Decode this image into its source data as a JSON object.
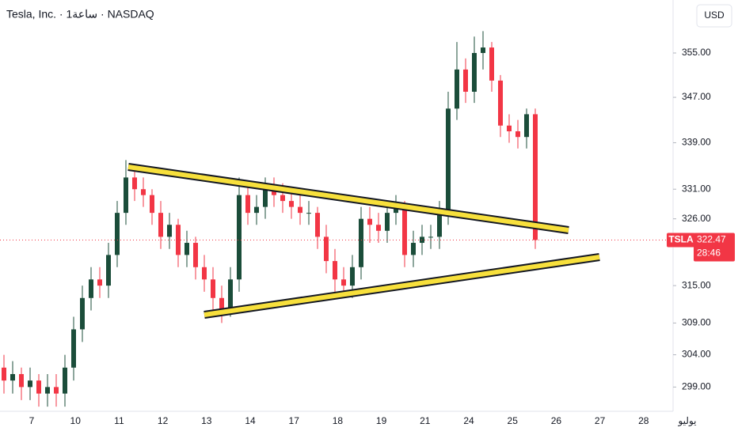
{
  "chart_data": {
    "type": "candlestick",
    "title": "Tesla, Inc. · 1ساعة · NASDAQ",
    "currency": "USD",
    "symbol": "TSLA",
    "current_price": 322.47,
    "countdown": "28:46",
    "categories": [
      "7",
      "10",
      "11",
      "12",
      "13",
      "14",
      "17",
      "18",
      "19",
      "21",
      "24",
      "25",
      "26",
      "27",
      "28",
      "يوليو"
    ],
    "up_color": "#1b4d3a",
    "down_color": "#f23645",
    "trend_color": "#f7e03c",
    "log_scale": true,
    "ylim": [
      295.3,
      364.8
    ],
    "yticks": [
      {
        "value": 355,
        "label": "355.00"
      },
      {
        "value": 347,
        "label": "347.00"
      },
      {
        "value": 339,
        "label": "339.00"
      },
      {
        "value": 331,
        "label": "331.00"
      },
      {
        "value": 326,
        "label": "326.00"
      },
      {
        "value": 315,
        "label": "315.00"
      },
      {
        "value": 309,
        "label": "309.00"
      },
      {
        "value": 304,
        "label": "304.00"
      },
      {
        "value": 299,
        "label": "299.00"
      }
    ],
    "open": [
      302,
      300,
      301,
      299,
      300,
      298,
      299,
      298,
      302,
      308,
      313,
      316,
      315,
      320,
      327,
      333,
      331,
      330,
      327,
      323,
      325,
      320,
      322,
      318,
      316,
      313,
      311,
      316,
      330,
      327,
      328,
      331,
      330,
      329,
      328,
      327,
      327,
      323,
      319,
      316,
      315,
      318,
      326,
      325,
      324,
      327,
      328,
      320,
      322,
      323,
      323,
      327,
      345,
      352,
      348,
      355,
      356,
      350,
      342,
      341,
      340,
      344
    ],
    "high": [
      304,
      303,
      302,
      302,
      301,
      301,
      301,
      304,
      310,
      315,
      318,
      318,
      322,
      329,
      336,
      335,
      333,
      331,
      329,
      327,
      326,
      324,
      323,
      320,
      318,
      315,
      318,
      333,
      332,
      330,
      333,
      333,
      332,
      331,
      330,
      329,
      328,
      325,
      321,
      318,
      320,
      328,
      328,
      327,
      329,
      330,
      329,
      324,
      325,
      325,
      329,
      348,
      357,
      354,
      358,
      359,
      357,
      351,
      344,
      343,
      345,
      345
    ],
    "low": [
      298,
      298,
      297,
      297,
      296,
      296,
      296,
      296,
      300,
      306,
      311,
      313,
      313,
      318,
      325,
      329,
      328,
      325,
      321,
      321,
      318,
      318,
      316,
      314,
      311,
      309,
      310,
      314,
      325,
      325,
      326,
      328,
      327,
      326,
      325,
      325,
      321,
      317,
      314,
      313,
      313,
      316,
      322,
      322,
      322,
      325,
      318,
      318,
      320,
      321,
      321,
      325,
      343,
      346,
      346,
      352,
      348,
      340,
      339,
      338,
      338,
      321
    ],
    "close": [
      300,
      301,
      299,
      300,
      298,
      299,
      298,
      302,
      308,
      313,
      316,
      315,
      320,
      327,
      333,
      331,
      330,
      327,
      323,
      325,
      320,
      322,
      318,
      316,
      313,
      311,
      316,
      330,
      327,
      328,
      331,
      330,
      329,
      328,
      327,
      327,
      323,
      319,
      316,
      315,
      318,
      326,
      325,
      324,
      327,
      328,
      320,
      322,
      323,
      323,
      327,
      345,
      352,
      348,
      355,
      356,
      350,
      342,
      341,
      340,
      344,
      322.47
    ]
  }
}
